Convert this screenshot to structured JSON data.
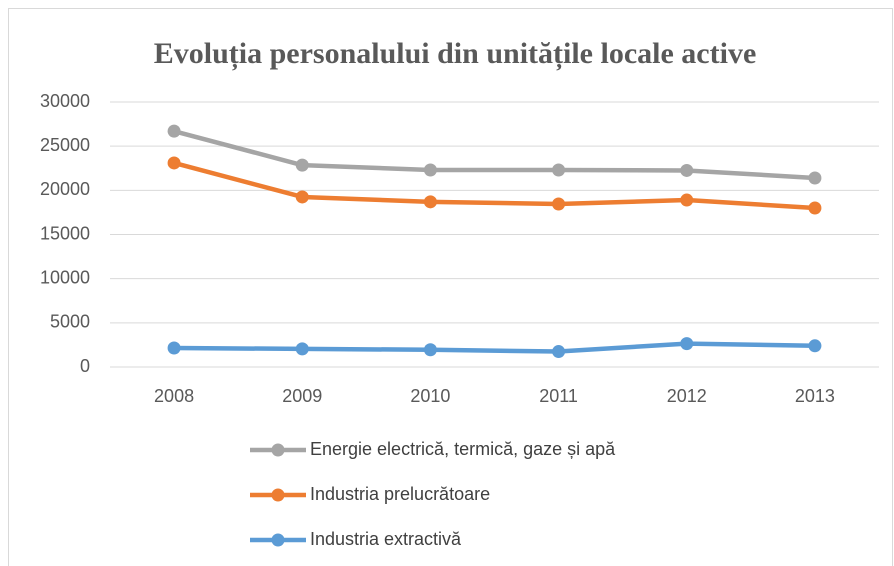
{
  "chart_data": {
    "type": "line",
    "title": "Evoluția personalului din unitățile locale active",
    "categories": [
      "2008",
      "2009",
      "2010",
      "2011",
      "2012",
      "2013"
    ],
    "series": [
      {
        "name": "Energie electrică, termică, gaze și apă",
        "color": "#a5a5a5",
        "values": [
          26700,
          22850,
          22300,
          22300,
          22250,
          21400
        ]
      },
      {
        "name": "Industria prelucrătoare",
        "color": "#ed7d31",
        "values": [
          23100,
          19250,
          18700,
          18450,
          18900,
          18000
        ]
      },
      {
        "name": "Industria extractivă",
        "color": "#5b9bd5",
        "values": [
          2150,
          2050,
          1950,
          1750,
          2650,
          2400
        ]
      }
    ],
    "ylim": [
      0,
      30000
    ],
    "yticks": [
      0,
      5000,
      10000,
      15000,
      20000,
      25000,
      30000
    ],
    "grid": true
  }
}
